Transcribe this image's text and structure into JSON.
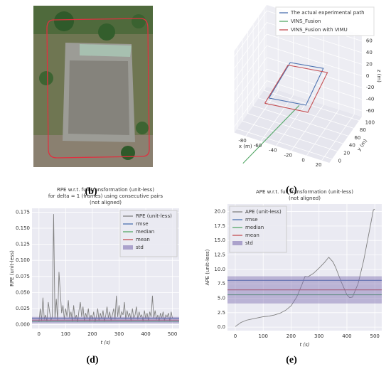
{
  "panel_labels": [
    "(b)",
    "(c)",
    "(d)",
    "(e)"
  ],
  "chart_data": [
    {
      "type": "line3d",
      "series": [
        {
          "name": "The actual experimental path",
          "color": "#4c72b0",
          "x": [
            -53,
            -57,
            -17,
            -8,
            -53
          ],
          "y": [
            0,
            90,
            100,
            10,
            0
          ],
          "z": [
            0,
            0,
            0,
            0,
            0
          ]
        },
        {
          "name": "VINS_Fusion",
          "color": "#55a868",
          "x": [
            -15,
            -80
          ],
          "y": [
            5,
            -20
          ],
          "z": [
            0,
            -110
          ]
        },
        {
          "name": "VINS_Fusion with VIMU",
          "color": "#c44e52",
          "x": [
            -57,
            -61,
            -13,
            -4,
            -57
          ],
          "y": [
            -4,
            93,
            104,
            6,
            -4
          ],
          "z": [
            -8,
            -8,
            -8,
            -8,
            -8
          ]
        }
      ],
      "xlim": [
        -95,
        30
      ],
      "ylim": [
        -10,
        110
      ],
      "zlim": [
        -70,
        70
      ],
      "xticks": [
        -80,
        -60,
        -40,
        -20,
        0,
        20
      ],
      "yticks": [
        0,
        20,
        40,
        60,
        80,
        100
      ],
      "zticks": [
        -60,
        -40,
        -20,
        0,
        20,
        40,
        60
      ],
      "xlabel": "x (m)",
      "ylabel": "y (m)",
      "zlabel": "z (m)"
    },
    {
      "type": "line",
      "title": [
        "RPE w.r.t. full transformation (unit-less)",
        "for delta = 1 (frames) using consecutive pairs",
        "(not aligned)"
      ],
      "xlabel": "t (s)",
      "ylabel": "RPE (unit-less)",
      "xlim": [
        -26,
        525
      ],
      "ylim": [
        -0.006,
        0.181
      ],
      "xticks": [
        0,
        100,
        200,
        300,
        400,
        500
      ],
      "yticks": [
        {
          "value": 0,
          "label": "0.000"
        },
        {
          "value": 0.025,
          "label": "0.025"
        },
        {
          "value": 0.05,
          "label": "0.050"
        },
        {
          "value": 0.075,
          "label": "0.075"
        },
        {
          "value": 0.1,
          "label": "0.100"
        },
        {
          "value": 0.125,
          "label": "0.125"
        },
        {
          "value": 0.15,
          "label": "0.150"
        },
        {
          "value": 0.175,
          "label": "0.175"
        }
      ],
      "legend": "upper right",
      "grid": true,
      "series": [
        {
          "name": "RPE (unit-less)",
          "color": "#808080",
          "x": [
            0,
            5,
            10,
            15,
            20,
            25,
            30,
            35,
            40,
            45,
            50,
            55,
            60,
            65,
            70,
            75,
            80,
            85,
            90,
            95,
            100,
            105,
            110,
            115,
            120,
            125,
            130,
            135,
            140,
            145,
            150,
            155,
            160,
            165,
            170,
            175,
            180,
            185,
            190,
            195,
            200,
            205,
            210,
            215,
            220,
            225,
            230,
            235,
            240,
            245,
            250,
            255,
            260,
            265,
            270,
            275,
            280,
            285,
            290,
            295,
            300,
            305,
            310,
            315,
            320,
            325,
            330,
            335,
            340,
            345,
            350,
            355,
            360,
            365,
            370,
            375,
            380,
            385,
            390,
            395,
            400,
            405,
            410,
            415,
            420,
            425,
            430,
            435,
            440,
            445,
            450,
            455,
            460,
            465,
            470,
            475,
            480,
            485,
            490,
            495,
            500
          ],
          "values": [
            0.004,
            0.025,
            0.006,
            0.042,
            0.008,
            0.015,
            0.005,
            0.035,
            0.02,
            0.007,
            0.012,
            0.172,
            0.009,
            0.04,
            0.006,
            0.082,
            0.05,
            0.018,
            0.03,
            0.008,
            0.025,
            0.012,
            0.038,
            0.01,
            0.02,
            0.005,
            0.03,
            0.008,
            0.015,
            0.004,
            0.022,
            0.035,
            0.012,
            0.028,
            0.006,
            0.018,
            0.01,
            0.025,
            0.005,
            0.015,
            0.008,
            0.02,
            0.004,
            0.012,
            0.025,
            0.006,
            0.018,
            0.009,
            0.022,
            0.005,
            0.014,
            0.028,
            0.01,
            0.02,
            0.006,
            0.015,
            0.025,
            0.008,
            0.045,
            0.012,
            0.03,
            0.01,
            0.02,
            0.015,
            0.035,
            0.008,
            0.022,
            0.012,
            0.018,
            0.006,
            0.025,
            0.01,
            0.015,
            0.028,
            0.008,
            0.02,
            0.012,
            0.015,
            0.005,
            0.022,
            0.009,
            0.018,
            0.006,
            0.02,
            0.012,
            0.045,
            0.01,
            0.022,
            0.008,
            0.015,
            0.005,
            0.018,
            0.01,
            0.02,
            0.006,
            0.015,
            0.012,
            0.018,
            0.005,
            0.02,
            0.01
          ]
        },
        {
          "name": "rmse",
          "color": "#4c72b0",
          "style": "hline",
          "values": [
            0.01
          ]
        },
        {
          "name": "median",
          "color": "#55a868",
          "style": "hline",
          "values": [
            0.005
          ]
        },
        {
          "name": "mean",
          "color": "#c44e52",
          "style": "hline",
          "values": [
            0.007
          ]
        },
        {
          "name": "std",
          "color": "#8172b2",
          "style": "band",
          "values": [
            0.005
          ]
        }
      ]
    },
    {
      "type": "line",
      "title": [
        "APE w.r.t. full transformation (unit-less)",
        "(not aligned)"
      ],
      "xlabel": "t (s)",
      "ylabel": "APE (unit-less)",
      "xlim": [
        -28,
        525
      ],
      "ylim": [
        -0.6,
        21.3
      ],
      "xticks": [
        0,
        100,
        200,
        300,
        400,
        500
      ],
      "yticks": [
        {
          "value": 0,
          "label": "0.0"
        },
        2.5,
        {
          "value": 5,
          "label": "5.0"
        },
        7.5,
        {
          "value": 10,
          "label": "10.0"
        },
        12.5,
        {
          "value": 15,
          "label": "15.0"
        },
        17.5,
        {
          "value": 20,
          "label": "20.0"
        }
      ],
      "legend": "upper left",
      "grid": true,
      "series": [
        {
          "name": "APE (unit-less)",
          "color": "#808080",
          "x": [
            0,
            20,
            40,
            60,
            80,
            100,
            120,
            140,
            160,
            180,
            200,
            220,
            240,
            250,
            260,
            280,
            300,
            320,
            335,
            350,
            360,
            380,
            400,
            410,
            420,
            440,
            460,
            480,
            495,
            500
          ],
          "values": [
            0.1,
            0.8,
            1.2,
            1.4,
            1.6,
            1.8,
            1.9,
            2.1,
            2.4,
            2.9,
            3.7,
            5.2,
            7.5,
            8.8,
            8.7,
            9.3,
            10.2,
            11.2,
            12.1,
            11.3,
            10.3,
            7.8,
            5.6,
            5.1,
            5.2,
            7.5,
            11.5,
            16.5,
            20.3,
            20.4
          ]
        },
        {
          "name": "rmse",
          "color": "#4c72b0",
          "style": "hline",
          "values": [
            8.1
          ]
        },
        {
          "name": "median",
          "color": "#55a868",
          "style": "hline",
          "values": [
            5.6
          ]
        },
        {
          "name": "mean",
          "color": "#c44e52",
          "style": "hline",
          "values": [
            6.45
          ]
        },
        {
          "name": "std",
          "color": "#8172b2",
          "style": "band",
          "values": [
            2.35
          ]
        }
      ]
    }
  ]
}
